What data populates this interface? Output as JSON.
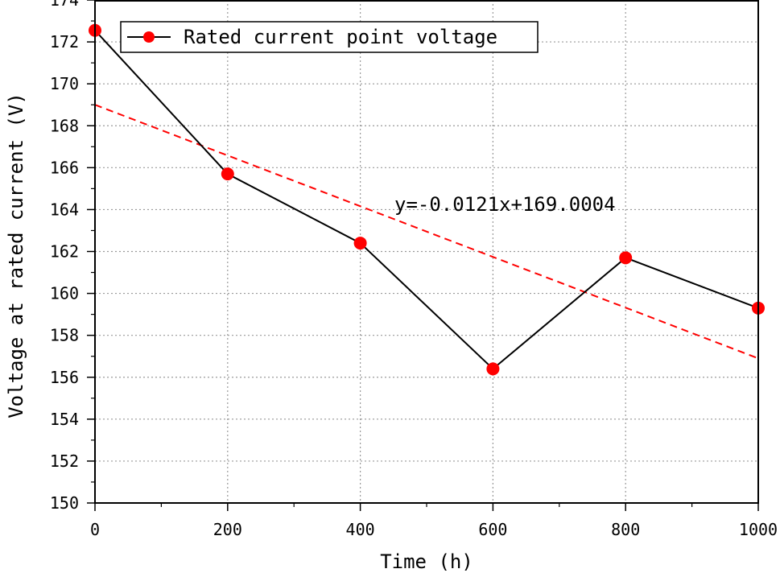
{
  "chart_data": {
    "type": "line",
    "xlabel": "Time (h)",
    "ylabel": "Voltage at rated current (V)",
    "xlim": [
      0,
      1000
    ],
    "ylim": [
      150,
      174
    ],
    "x_ticks": [
      0,
      200,
      400,
      600,
      800,
      1000
    ],
    "y_ticks": [
      150,
      152,
      154,
      156,
      158,
      160,
      162,
      164,
      166,
      168,
      170,
      172,
      174
    ],
    "grid": true,
    "legend_position": "top-left",
    "series": [
      {
        "name": "Rated current point voltage",
        "x": [
          0,
          200,
          400,
          600,
          800,
          1000
        ],
        "y": [
          172.55,
          165.7,
          162.4,
          156.4,
          161.7,
          159.3
        ],
        "line_color": "#000000",
        "marker_color": "#ff0000"
      }
    ],
    "fit_line": {
      "equation": "y=-0.0121x+169.0004",
      "slope": -0.0121,
      "intercept": 169.0004,
      "color": "#ff0000",
      "style": "dashed"
    }
  }
}
